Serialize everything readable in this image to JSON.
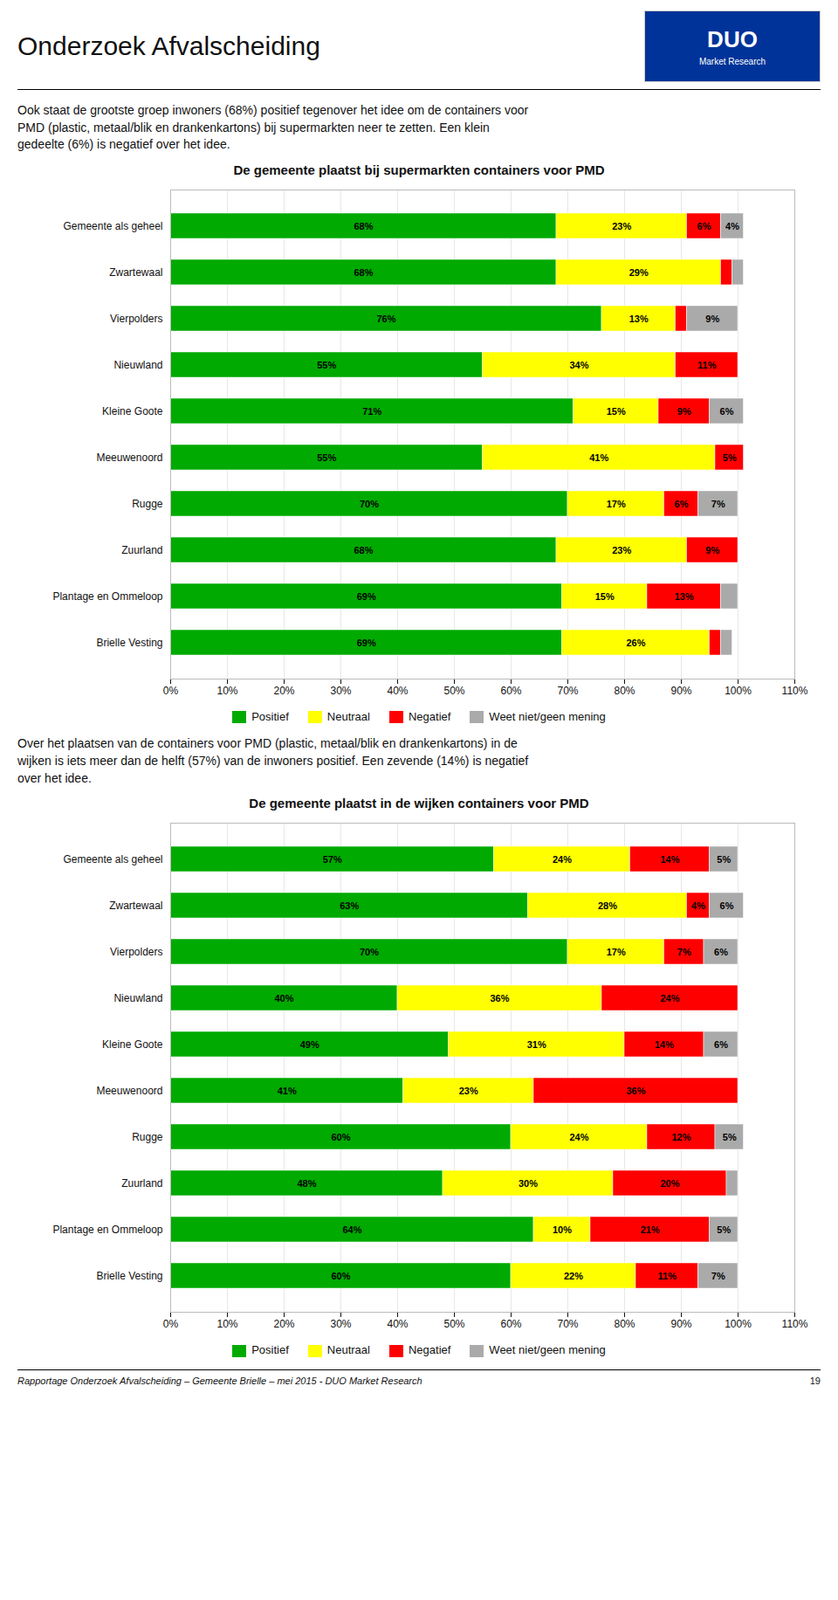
{
  "title": "Onderzoek Afvalscheiding",
  "logo": [
    "DUO",
    "Market Research"
  ],
  "footer": "Rapportage Onderzoek Afvalscheiding – Gemeente Brielle – mei 2015 - DUO Market Research",
  "page_number": "19",
  "chart_data": [
    {
      "type": "bar",
      "orientation": "horizontal",
      "stacked": true,
      "data_labels": true,
      "grid": true,
      "legend": "bottom",
      "subtitle": "Ook staat de grootste groep inwoners (68%) positief tegenover het idee om de containers voor\nPMD (plastic, metaal/blik en drankenkartons) bij supermarkten neer te zetten. Een klein\ngedeelte (6%) is negatief over het idee.",
      "title": "De gemeente plaatst bij supermarkten containers voor PMD",
      "categories": [
        "Gemeente als geheel",
        "Zwartewaal",
        "Vierpolders",
        "Nieuwland",
        "Kleine Goote",
        "Meeuwenoord",
        "Rugge",
        "Zuurland",
        "Plantage en Ommeloop",
        "Brielle Vesting"
      ],
      "series": [
        {
          "name": "Positief",
          "color": "#00aa00",
          "values": [
            68,
            68,
            76,
            55,
            71,
            55,
            70,
            68,
            69,
            69
          ],
          "value_labels": [
            "68%",
            "68%",
            "76%",
            "55%",
            "71%",
            "55%",
            "70%",
            "68%",
            "69%",
            "69%"
          ]
        },
        {
          "name": "Neutraal",
          "color": "#ffff00",
          "values": [
            23,
            29,
            13,
            34,
            15,
            41,
            17,
            23,
            15,
            26
          ],
          "value_labels": [
            "23%",
            "29%",
            "13%",
            "34%",
            "15%",
            "41%",
            "17%",
            "23%",
            "15%",
            "26%"
          ]
        },
        {
          "name": "Negatief",
          "color": "#ff0000",
          "values": [
            6,
            2,
            2,
            11,
            9,
            5,
            6,
            9,
            13,
            2
          ],
          "value_labels": [
            "6%",
            null,
            null,
            "11%",
            "9%",
            "5%",
            "6%",
            "9%",
            "13%",
            null
          ]
        },
        {
          "name": "Weet niet/geen mening",
          "color": "#aaaaaa",
          "values": [
            4,
            2,
            9,
            0,
            6,
            0,
            7,
            0,
            3,
            2
          ],
          "value_labels": [
            "4%",
            null,
            "9%",
            null,
            "6%",
            null,
            "7%",
            null,
            null,
            null
          ]
        }
      ],
      "xlim": [
        0,
        110
      ],
      "xticks": [
        {
          "value": 0,
          "label": "0%"
        },
        {
          "value": 10,
          "label": "10%"
        },
        {
          "value": 20,
          "label": "20%"
        },
        {
          "value": 30,
          "label": "30%"
        },
        {
          "value": 40,
          "label": "40%"
        },
        {
          "value": 50,
          "label": "50%"
        },
        {
          "value": 60,
          "label": "60%"
        },
        {
          "value": 70,
          "label": "70%"
        },
        {
          "value": 80,
          "label": "80%"
        },
        {
          "value": 90,
          "label": "90%"
        },
        {
          "value": 100,
          "label": "100%"
        },
        {
          "value": 110,
          "label": "110%"
        }
      ]
    },
    {
      "type": "bar",
      "orientation": "horizontal",
      "stacked": true,
      "data_labels": true,
      "grid": true,
      "legend": "bottom",
      "subtitle": "Over het plaatsen van de containers voor PMD (plastic, metaal/blik en drankenkartons) in de\nwijken is iets meer dan de helft (57%) van de inwoners positief. Een zevende (14%) is negatief\nover het idee.",
      "title": "De gemeente plaatst in de wijken containers voor PMD",
      "categories": [
        "Gemeente als geheel",
        "Zwartewaal",
        "Vierpolders",
        "Nieuwland",
        "Kleine Goote",
        "Meeuwenoord",
        "Rugge",
        "Zuurland",
        "Plantage en Ommeloop",
        "Brielle Vesting"
      ],
      "series": [
        {
          "name": "Positief",
          "color": "#00aa00",
          "values": [
            57,
            63,
            70,
            40,
            49,
            41,
            60,
            48,
            64,
            60
          ],
          "value_labels": [
            "57%",
            "63%",
            "70%",
            "40%",
            "49%",
            "41%",
            "60%",
            "48%",
            "64%",
            "60%"
          ]
        },
        {
          "name": "Neutraal",
          "color": "#ffff00",
          "values": [
            24,
            28,
            17,
            36,
            31,
            23,
            24,
            30,
            10,
            22
          ],
          "value_labels": [
            "24%",
            "28%",
            "17%",
            "36%",
            "31%",
            "23%",
            "24%",
            "30%",
            "10%",
            "22%"
          ]
        },
        {
          "name": "Negatief",
          "color": "#ff0000",
          "values": [
            14,
            4,
            7,
            24,
            14,
            36,
            12,
            20,
            21,
            11
          ],
          "value_labels": [
            "14%",
            "4%",
            "7%",
            "24%",
            "14%",
            "36%",
            "12%",
            "20%",
            "21%",
            "11%"
          ]
        },
        {
          "name": "Weet niet/geen mening",
          "color": "#aaaaaa",
          "values": [
            5,
            6,
            6,
            0,
            6,
            0,
            5,
            2,
            5,
            7
          ],
          "value_labels": [
            "5%",
            "6%",
            "6%",
            null,
            "6%",
            null,
            "5%",
            null,
            "5%",
            "7%"
          ]
        }
      ],
      "xlim": [
        0,
        110
      ],
      "xticks": [
        {
          "value": 0,
          "label": "0%"
        },
        {
          "value": 10,
          "label": "10%"
        },
        {
          "value": 20,
          "label": "20%"
        },
        {
          "value": 30,
          "label": "30%"
        },
        {
          "value": 40,
          "label": "40%"
        },
        {
          "value": 50,
          "label": "50%"
        },
        {
          "value": 60,
          "label": "60%"
        },
        {
          "value": 70,
          "label": "70%"
        },
        {
          "value": 80,
          "label": "80%"
        },
        {
          "value": 90,
          "label": "90%"
        },
        {
          "value": 100,
          "label": "100%"
        },
        {
          "value": 110,
          "label": "110%"
        }
      ]
    }
  ]
}
